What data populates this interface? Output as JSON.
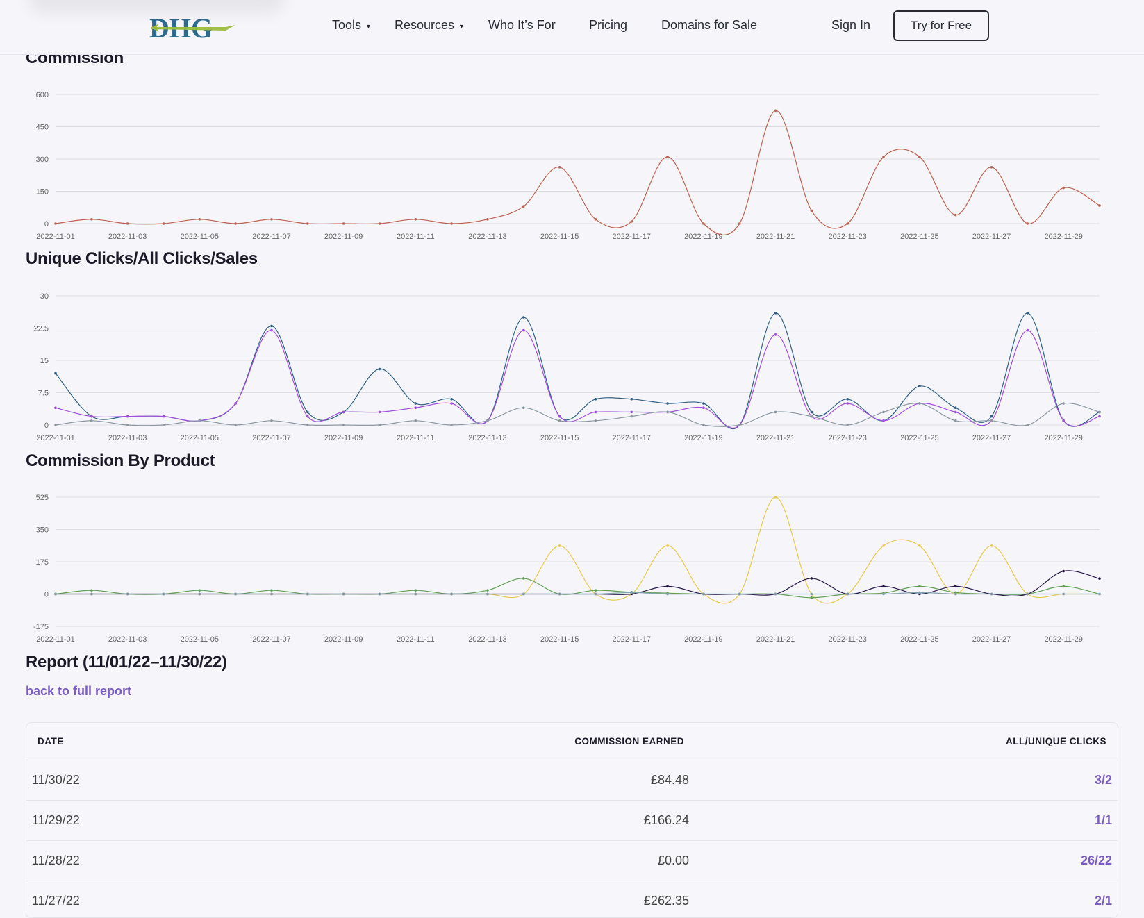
{
  "header": {
    "logo_text": "DHG",
    "nav": [
      {
        "label": "Tools",
        "has_dropdown": true
      },
      {
        "label": "Resources",
        "has_dropdown": true
      },
      {
        "label": "Who It’s For",
        "has_dropdown": false
      },
      {
        "label": "Pricing",
        "has_dropdown": false
      },
      {
        "label": "Domains for Sale",
        "has_dropdown": false
      }
    ],
    "sign_in": "Sign In",
    "try_free": "Try for Free"
  },
  "sections": {
    "commission": "Commission",
    "clicks": "Unique Clicks/All Clicks/Sales",
    "by_product": "Commission By Product",
    "report": "Report (11/01/22–11/30/22)"
  },
  "back_link": "back to full report",
  "table": {
    "headers": {
      "date": "DATE",
      "commission": "COMMISSION EARNED",
      "clicks": "ALL/UNIQUE CLICKS"
    },
    "rows": [
      {
        "date": "11/30/22",
        "commission": "£84.48",
        "clicks": "3/2"
      },
      {
        "date": "11/29/22",
        "commission": "£166.24",
        "clicks": "1/1"
      },
      {
        "date": "11/28/22",
        "commission": "£0.00",
        "clicks": "26/22"
      },
      {
        "date": "11/27/22",
        "commission": "£262.35",
        "clicks": "2/1"
      }
    ]
  },
  "colors": {
    "commission_line": "#c0604f",
    "all_clicks": "#2f5f86",
    "unique_clicks": "#a34ee0",
    "sales": "#8b98a3",
    "product_a": "#e9c94d",
    "product_b": "#5fa052",
    "product_c": "#28164a",
    "product_d": "#7fa0b0",
    "accent": "#7b5cc6"
  },
  "chart_data": [
    {
      "type": "line",
      "title": "Commission",
      "x": [
        "2022-11-01",
        "2022-11-02",
        "2022-11-03",
        "2022-11-04",
        "2022-11-05",
        "2022-11-06",
        "2022-11-07",
        "2022-11-08",
        "2022-11-09",
        "2022-11-10",
        "2022-11-11",
        "2022-11-12",
        "2022-11-13",
        "2022-11-14",
        "2022-11-15",
        "2022-11-16",
        "2022-11-17",
        "2022-11-18",
        "2022-11-19",
        "2022-11-20",
        "2022-11-21",
        "2022-11-22",
        "2022-11-23",
        "2022-11-24",
        "2022-11-25",
        "2022-11-26",
        "2022-11-27",
        "2022-11-28",
        "2022-11-29",
        "2022-11-30"
      ],
      "x_tick_labels": [
        "2022-11-01",
        "2022-11-03",
        "2022-11-05",
        "2022-11-07",
        "2022-11-09",
        "2022-11-11",
        "2022-11-13",
        "2022-11-15",
        "2022-11-17",
        "2022-11-19",
        "2022-11-21",
        "2022-11-23",
        "2022-11-25",
        "2022-11-27",
        "2022-11-29"
      ],
      "y_ticks": [
        0,
        150,
        300,
        450,
        600
      ],
      "ylim": [
        0,
        600
      ],
      "series": [
        {
          "color": "#c0604f",
          "values": [
            0,
            20,
            0,
            0,
            20,
            0,
            20,
            0,
            0,
            0,
            20,
            0,
            20,
            80,
            262,
            20,
            10,
            310,
            0,
            0,
            525,
            60,
            0,
            310,
            310,
            40,
            262,
            0,
            166,
            84
          ]
        }
      ]
    },
    {
      "type": "line",
      "title": "Unique Clicks/All Clicks/Sales",
      "x": [
        "2022-11-01",
        "2022-11-02",
        "2022-11-03",
        "2022-11-04",
        "2022-11-05",
        "2022-11-06",
        "2022-11-07",
        "2022-11-08",
        "2022-11-09",
        "2022-11-10",
        "2022-11-11",
        "2022-11-12",
        "2022-11-13",
        "2022-11-14",
        "2022-11-15",
        "2022-11-16",
        "2022-11-17",
        "2022-11-18",
        "2022-11-19",
        "2022-11-20",
        "2022-11-21",
        "2022-11-22",
        "2022-11-23",
        "2022-11-24",
        "2022-11-25",
        "2022-11-26",
        "2022-11-27",
        "2022-11-28",
        "2022-11-29",
        "2022-11-30"
      ],
      "x_tick_labels": [
        "2022-11-01",
        "2022-11-03",
        "2022-11-05",
        "2022-11-07",
        "2022-11-09",
        "2022-11-11",
        "2022-11-13",
        "2022-11-15",
        "2022-11-17",
        "2022-11-19",
        "2022-11-21",
        "2022-11-23",
        "2022-11-25",
        "2022-11-27",
        "2022-11-29"
      ],
      "y_ticks": [
        0,
        7.5,
        15,
        22.5,
        30
      ],
      "y_tick_labels": [
        "0",
        "7.5",
        "15",
        "22.5",
        "30"
      ],
      "ylim": [
        0,
        30
      ],
      "series": [
        {
          "color": "#2f5f86",
          "values": [
            12,
            2,
            2,
            2,
            1,
            5,
            23,
            3,
            3,
            13,
            5,
            6,
            1,
            25,
            2,
            6,
            6,
            5,
            5,
            0,
            26,
            3,
            6,
            1,
            9,
            4,
            2,
            26,
            1,
            3
          ]
        },
        {
          "color": "#a34ee0",
          "values": [
            4,
            2,
            2,
            2,
            1,
            5,
            22,
            2,
            3,
            3,
            4,
            5,
            1,
            22,
            2,
            3,
            3,
            3,
            4,
            0,
            21,
            2,
            5,
            1,
            5,
            3,
            1,
            22,
            1,
            2
          ]
        },
        {
          "color": "#8b98a3",
          "values": [
            0,
            1,
            0,
            0,
            1,
            0,
            1,
            0,
            0,
            0,
            1,
            0,
            1,
            4,
            1,
            1,
            2,
            3,
            0,
            0,
            3,
            2,
            0,
            3,
            5,
            1,
            1,
            0,
            5,
            3
          ]
        }
      ]
    },
    {
      "type": "line",
      "title": "Commission By Product",
      "x": [
        "2022-11-01",
        "2022-11-02",
        "2022-11-03",
        "2022-11-04",
        "2022-11-05",
        "2022-11-06",
        "2022-11-07",
        "2022-11-08",
        "2022-11-09",
        "2022-11-10",
        "2022-11-11",
        "2022-11-12",
        "2022-11-13",
        "2022-11-14",
        "2022-11-15",
        "2022-11-16",
        "2022-11-17",
        "2022-11-18",
        "2022-11-19",
        "2022-11-20",
        "2022-11-21",
        "2022-11-22",
        "2022-11-23",
        "2022-11-24",
        "2022-11-25",
        "2022-11-26",
        "2022-11-27",
        "2022-11-28",
        "2022-11-29",
        "2022-11-30"
      ],
      "x_tick_labels": [
        "2022-11-01",
        "2022-11-03",
        "2022-11-05",
        "2022-11-07",
        "2022-11-09",
        "2022-11-11",
        "2022-11-13",
        "2022-11-15",
        "2022-11-17",
        "2022-11-19",
        "2022-11-21",
        "2022-11-23",
        "2022-11-25",
        "2022-11-27",
        "2022-11-29"
      ],
      "y_ticks": [
        -175,
        0,
        175,
        350,
        525
      ],
      "ylim": [
        -175,
        525
      ],
      "series": [
        {
          "color": "#e9c94d",
          "values": [
            0,
            0,
            0,
            0,
            0,
            0,
            0,
            0,
            0,
            0,
            0,
            0,
            0,
            0,
            262,
            0,
            0,
            262,
            0,
            0,
            525,
            0,
            0,
            262,
            262,
            0,
            262,
            0,
            0,
            0
          ]
        },
        {
          "color": "#5fa052",
          "values": [
            0,
            20,
            0,
            0,
            20,
            0,
            20,
            0,
            0,
            0,
            20,
            0,
            20,
            85,
            0,
            20,
            10,
            5,
            0,
            0,
            0,
            -20,
            0,
            5,
            42,
            8,
            0,
            0,
            42,
            0
          ]
        },
        {
          "color": "#28164a",
          "values": [
            0,
            0,
            0,
            0,
            0,
            0,
            0,
            0,
            0,
            0,
            0,
            0,
            0,
            0,
            0,
            0,
            0,
            42,
            0,
            0,
            0,
            85,
            0,
            42,
            0,
            42,
            0,
            0,
            124,
            84
          ]
        },
        {
          "color": "#7fa0b0",
          "values": [
            0,
            0,
            0,
            0,
            0,
            0,
            0,
            0,
            0,
            0,
            0,
            0,
            0,
            0,
            0,
            0,
            8,
            0,
            0,
            0,
            0,
            0,
            0,
            0,
            8,
            0,
            0,
            0,
            0,
            0
          ]
        }
      ]
    }
  ]
}
